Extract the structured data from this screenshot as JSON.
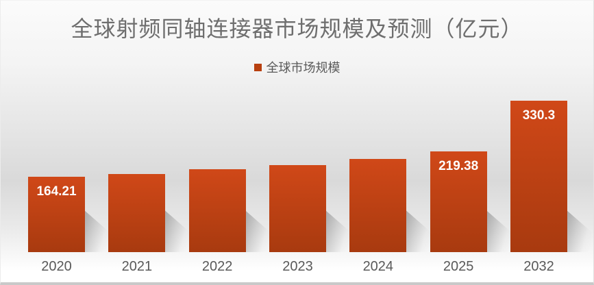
{
  "chart_data": {
    "type": "bar",
    "title": "全球射频同轴连接器市场规模及预测（亿元）",
    "legend": {
      "entries": [
        "全球市场规模"
      ],
      "position": "top-center"
    },
    "categories": [
      "2020",
      "2021",
      "2022",
      "2023",
      "2024",
      "2025",
      "2032"
    ],
    "series": [
      {
        "name": "全球市场规模",
        "values": [
          164.21,
          171,
          181,
          190,
          203,
          219.38,
          330.3
        ],
        "values_note": "2021-2024 estimated from bar heights; only 2020, 2025, 2032 carry visible data labels"
      }
    ],
    "data_labels": [
      "164.21",
      "",
      "",
      "",
      "",
      "219.38",
      "330.3"
    ],
    "xlabel": "",
    "ylabel": "",
    "ylim": [
      0,
      345
    ],
    "grid": false,
    "y_axis_visible": false,
    "colors": {
      "bar_gradient_top": "#d04818",
      "bar_gradient_bottom": "#a83a0f",
      "legend_marker": "#b8400f",
      "title_text": "#6e6e6e",
      "axis_text": "#595959",
      "data_label_text": "#ffffff"
    }
  }
}
